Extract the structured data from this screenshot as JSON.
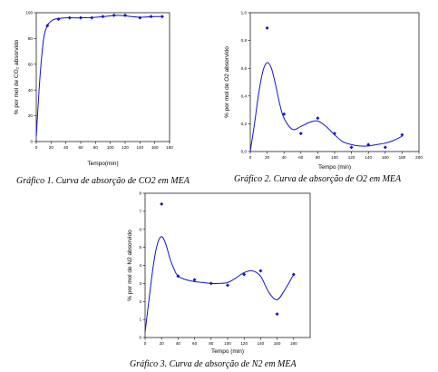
{
  "chart_data": [
    {
      "type": "line",
      "id": "co2",
      "caption": "Gráfico 1. Curva de absorção de CO2 em MEA",
      "xlabel": "Tempo(min)",
      "ylabel": "% por mol de CO₂ absorvido",
      "xlim": [
        0,
        180
      ],
      "ylim": [
        0,
        100
      ],
      "xticks": [
        0,
        20,
        40,
        60,
        80,
        100,
        120,
        140,
        160,
        180
      ],
      "yticks": [
        0,
        20,
        40,
        60,
        80,
        100
      ],
      "series": [
        {
          "kind": "points",
          "x": [
            15,
            30,
            45,
            60,
            75,
            90,
            105,
            120,
            140,
            155,
            170
          ],
          "y": [
            90,
            95,
            96,
            96,
            96,
            97,
            98,
            98,
            96,
            97,
            97
          ]
        },
        {
          "kind": "fit",
          "x": [
            0,
            5,
            10,
            15,
            20,
            25,
            30,
            40,
            50,
            60,
            80,
            100,
            110,
            120,
            140,
            160,
            170
          ],
          "y": [
            4,
            50,
            80,
            90,
            93.5,
            95,
            95.5,
            96,
            96,
            96,
            96.5,
            97.5,
            98,
            97.5,
            96.5,
            97,
            97
          ]
        }
      ],
      "color": "#1515c8"
    },
    {
      "type": "line",
      "id": "o2",
      "caption": "Gráfico 2. Curva de absorção de O2 em MEA",
      "xlabel": "Tempo (min)",
      "ylabel": "% por mol de O2 absorvido",
      "xlim": [
        0,
        200
      ],
      "ylim": [
        0,
        1.0
      ],
      "xticks": [
        0,
        20,
        40,
        60,
        80,
        100,
        120,
        140,
        160,
        180,
        200
      ],
      "yticks": [
        0,
        0.2,
        0.4,
        0.6,
        0.8,
        1.0
      ],
      "ytick_labels": [
        "0,0",
        "0,2",
        "0,4",
        "0,6",
        "0,8",
        "1,0"
      ],
      "series": [
        {
          "kind": "points",
          "x": [
            20,
            40,
            60,
            80,
            100,
            120,
            140,
            160,
            180
          ],
          "y": [
            0.89,
            0.27,
            0.13,
            0.24,
            0.13,
            0.03,
            0.05,
            0.03,
            0.12
          ]
        },
        {
          "kind": "fit",
          "x": [
            0,
            5,
            10,
            15,
            20,
            25,
            30,
            35,
            40,
            50,
            60,
            70,
            80,
            90,
            100,
            110,
            120,
            130,
            140,
            150,
            160,
            170,
            180
          ],
          "y": [
            0.0,
            0.2,
            0.42,
            0.58,
            0.64,
            0.6,
            0.48,
            0.34,
            0.24,
            0.16,
            0.18,
            0.21,
            0.22,
            0.18,
            0.12,
            0.07,
            0.05,
            0.04,
            0.04,
            0.05,
            0.06,
            0.08,
            0.11
          ]
        }
      ],
      "color": "#1515c8"
    },
    {
      "type": "line",
      "id": "n2",
      "caption": "Gráfico 3. Curva de absorção de N2 em MEA",
      "xlabel": "Tempo (min)",
      "ylabel": "% por mol de N2 absorvido",
      "xlim": [
        0,
        200
      ],
      "ylim": [
        0,
        8
      ],
      "xticks": [
        0,
        20,
        40,
        60,
        80,
        100,
        120,
        140,
        160,
        180
      ],
      "yticks": [
        0,
        1,
        2,
        3,
        4,
        5,
        6,
        7,
        8
      ],
      "series": [
        {
          "kind": "points",
          "x": [
            20,
            40,
            60,
            80,
            100,
            120,
            140,
            160,
            180
          ],
          "y": [
            7.4,
            3.4,
            3.2,
            3.0,
            2.9,
            3.5,
            3.7,
            1.3,
            3.5
          ]
        },
        {
          "kind": "fit",
          "x": [
            0,
            5,
            10,
            15,
            20,
            25,
            30,
            35,
            40,
            50,
            60,
            70,
            80,
            90,
            100,
            110,
            120,
            130,
            140,
            150,
            160,
            170,
            180
          ],
          "y": [
            0.3,
            2.2,
            4.0,
            5.2,
            5.6,
            5.2,
            4.4,
            3.8,
            3.4,
            3.2,
            3.1,
            3.05,
            3.0,
            3.0,
            3.05,
            3.3,
            3.6,
            3.7,
            3.4,
            2.5,
            2.1,
            2.7,
            3.5
          ]
        }
      ],
      "color": "#1515c8"
    }
  ]
}
